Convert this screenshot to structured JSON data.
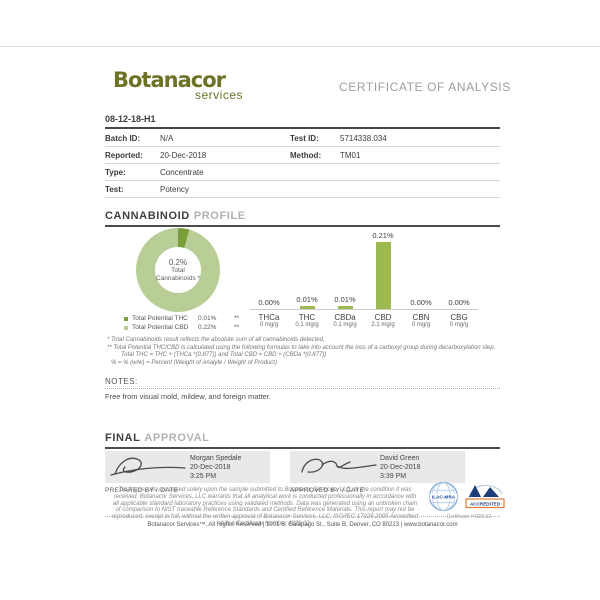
{
  "header": {
    "logo_primary": "Botanacor",
    "logo_secondary": "services",
    "title": "CERTIFICATE OF ANALYSIS"
  },
  "sample_id": "08-12-18-H1",
  "info": {
    "rows": [
      {
        "l1": "Batch ID:",
        "v1": "N/A",
        "l2": "Test ID:",
        "v2": "5714338.034"
      },
      {
        "l1": "Reported:",
        "v1": "20-Dec-2018",
        "l2": "Method:",
        "v2": "TM01"
      },
      {
        "l1": "Type:",
        "v1": "Concentrate",
        "l2": "",
        "v2": ""
      },
      {
        "l1": "Test:",
        "v1": "Potency",
        "l2": "",
        "v2": ""
      }
    ]
  },
  "sections": {
    "cannabinoid_strong": "CANNABINOID",
    "cannabinoid_light": "PROFILE",
    "approval_strong": "FINAL",
    "approval_light": "APPROVAL"
  },
  "donut_center": {
    "value": "0.2%",
    "line1": "Total",
    "line2": "Cannabinoids *"
  },
  "chart_data": [
    {
      "type": "pie",
      "title": "Total Cannabinoids",
      "center_text": "0.2% Total Cannabinoids *",
      "slices": [
        {
          "label": "Total Potential THC",
          "value": 0.01,
          "display": "0.01%",
          "note": "**",
          "color": "#7a9f3a"
        },
        {
          "label": "Total Potential CBD",
          "value": 0.22,
          "display": "0.22%",
          "note": "**",
          "color": "#b9ce97"
        }
      ],
      "legend_position": "below"
    },
    {
      "type": "bar",
      "categories": [
        "THCa",
        "THC",
        "CBDa",
        "CBD",
        "CBN",
        "CBG"
      ],
      "values": [
        0.0,
        0.01,
        0.01,
        0.21,
        0.0,
        0.0
      ],
      "value_labels": [
        "0.00%",
        "0.01%",
        "0.01%",
        "0.21%",
        "0.00%",
        "0.00%"
      ],
      "mg_labels": [
        "0 mg/g",
        "0.1 mg/g",
        "0.1 mg/g",
        "2.1 mg/g",
        "0 mg/g",
        "0 mg/g"
      ],
      "bar_color": "#9cba50",
      "xlabel": "",
      "ylabel": "",
      "ylim": [
        0,
        0.21
      ],
      "grid": false
    }
  ],
  "footnotes": [
    {
      "text": "* Total Cannabinoids result reflects the absolute sum of all cannabinoids detected.",
      "indent": 0
    },
    {
      "text": "** Total Potential THC/CBD is calculated using the following formulas to take into account the loss of a carboxyl group during decarboxylation step.",
      "indent": 0
    },
    {
      "text": "Total THC = THC + (THCa *(0.877)) and Total CBD = CBD + (CBDa *(0.877))",
      "indent": 14
    },
    {
      "text": "% = % (w/w) = Percent (Weight of Analyte / Weight of Product)",
      "indent": 4
    }
  ],
  "notes": {
    "label": "NOTES:",
    "content": "Free from visual mold, mildew, and foreign matter."
  },
  "approval": {
    "prepared": {
      "name": "Morgan Spedale",
      "date": "20-Dec-2018",
      "time": "3:25 PM",
      "label": "PREPARED BY / DATE"
    },
    "approved": {
      "name": "David Green",
      "date": "20-Dec-2018",
      "time": "3:39 PM",
      "label": "APPROVED BY / DATE"
    }
  },
  "disclaimer": "Testing results are based solely upon the sample submitted to Botanacor Services, LLC, in the condition it was received. Botanacor Services, LLC warrants that all analytical work is conducted professionally in accordance with all applicable standard laboratory practices using validated methods. Data was generated using an unbroken chain of comparison to NIST traceable Reference Standards and Certified Reference Materials. This report may not be reproduced, except in full, without the written approval of Botanacor Services, LLC. ISO/IEC 17025:2005 Accredited A2LA Certificate Number 4329.02",
  "accreditation": {
    "ilac_label": "ILAC-MRA",
    "a2la_accredited": "ACCREDITED",
    "certificate": "Certificate #4329.02"
  },
  "footer": "Botanacor Services™, All Rights Reserved | 1001 S. Galapago St., Suite B, Denver, CO 80223 | www.botanacor.com"
}
